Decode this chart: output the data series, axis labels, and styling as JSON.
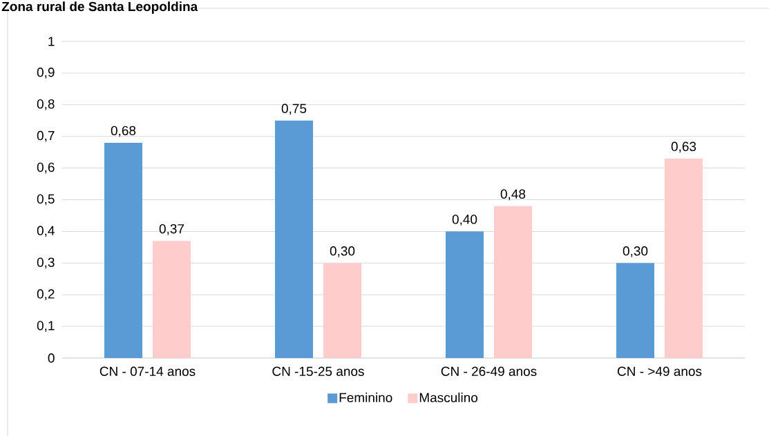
{
  "chart_data": {
    "type": "bar",
    "title": "Zona rural de Santa Leopoldina",
    "categories": [
      "CN - 07-14 anos",
      "CN -15-25 anos",
      "CN - 26-49 anos",
      "CN - >49 anos"
    ],
    "series": [
      {
        "name": "Feminino",
        "color": "#5b9bd5",
        "values": [
          0.68,
          0.75,
          0.4,
          0.3
        ],
        "value_labels": [
          "0,68",
          "0,75",
          "0,40",
          "0,30"
        ]
      },
      {
        "name": "Masculino",
        "color": "#ffcccc",
        "values": [
          0.37,
          0.3,
          0.48,
          0.63
        ],
        "value_labels": [
          "0,37",
          "0,30",
          "0,48",
          "0,63"
        ]
      }
    ],
    "ylim": [
      0,
      1
    ],
    "yticks": [
      0,
      {
        "value": 0.1,
        "label": "0,1"
      },
      {
        "value": 0.2,
        "label": "0,2"
      },
      {
        "value": 0.3,
        "label": "0,3"
      },
      {
        "value": 0.4,
        "label": "0,4"
      },
      {
        "value": 0.5,
        "label": "0,5"
      },
      {
        "value": 0.6,
        "label": "0,6"
      },
      {
        "value": 0.7,
        "label": "0,7"
      },
      {
        "value": 0.8,
        "label": "0,8"
      },
      {
        "value": 0.9,
        "label": "0,9"
      },
      1
    ],
    "grid": "y",
    "legend": "bottom"
  }
}
